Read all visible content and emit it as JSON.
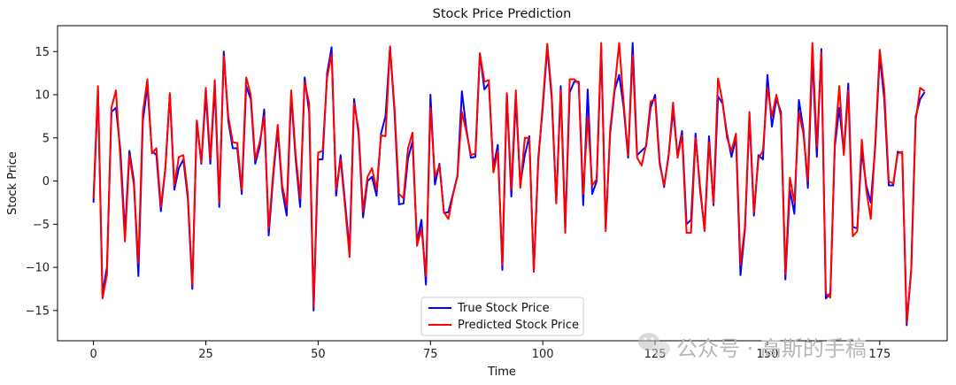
{
  "chart_data": {
    "type": "line",
    "title": "Stock Price Prediction",
    "xlabel": "Time",
    "ylabel": "Stock Price",
    "xlim": [
      -8,
      190
    ],
    "ylim": [
      -18.5,
      18
    ],
    "xticks": [
      0,
      25,
      50,
      75,
      100,
      125,
      150,
      175
    ],
    "yticks": [
      -15,
      -10,
      -5,
      0,
      5,
      10,
      15
    ],
    "legend_position": "lower-center",
    "series": [
      {
        "name": "True Stock Price",
        "color": "#0000ff",
        "values": [
          -2.5,
          10.5,
          -13,
          -10,
          8,
          8.5,
          3.5,
          -6,
          3.5,
          0,
          -11,
          7,
          11,
          3.5,
          3,
          -3.5,
          1.5,
          10,
          -1,
          1.5,
          2.5,
          -2,
          -12.5,
          7,
          2,
          10,
          2,
          11,
          -3,
          15,
          7,
          3.8,
          3.8,
          -1.5,
          11,
          9.5,
          2,
          4,
          8.3,
          -6.3,
          0.5,
          6,
          -1,
          -4,
          10,
          2.5,
          -3,
          12,
          8,
          -15,
          2.5,
          2.5,
          12.5,
          15.5,
          -1.7,
          3,
          -2.5,
          -8,
          9.5,
          5.5,
          -4.2,
          0,
          0.5,
          -1.7,
          5.5,
          7.5,
          15.5,
          8,
          -2.7,
          -2.6,
          2.6,
          4.6,
          -7,
          -4.5,
          -12,
          10,
          -0.4,
          2,
          -3.7,
          -3.6,
          -1.5,
          0.6,
          10.4,
          6,
          2.7,
          2.8,
          14.8,
          10.6,
          11.3,
          1.6,
          4.2,
          -10.3,
          10,
          -1.8,
          9.5,
          -0.4,
          3,
          5.2,
          -10.5,
          2.7,
          8.5,
          15.5,
          9.5,
          -2.5,
          11,
          -5.5,
          10.3,
          11.5,
          11.5,
          -2.8,
          10.6,
          -1.5,
          0,
          15.5,
          -5.5,
          5.5,
          10.5,
          12.3,
          8.5,
          2.7,
          16,
          3,
          3.5,
          4,
          8.5,
          10,
          2.3,
          -0.7,
          3,
          8.2,
          3,
          5.8,
          -5,
          -4.5,
          5.5,
          -1,
          -5.6,
          5.2,
          -2.8,
          9.8,
          9,
          5.5,
          2.8,
          5,
          -10.9,
          -5.6,
          7.5,
          -4,
          3,
          2.5,
          12.3,
          6.3,
          9.5,
          8,
          -11.4,
          -1,
          -3.8,
          9.4,
          6,
          -0.8,
          14.5,
          2.8,
          15.3,
          -13.6,
          -13,
          4,
          8.5,
          3.3,
          11.3,
          -5.3,
          -5.5,
          3.5,
          -0.5,
          -2.5,
          4,
          14.5,
          9.5,
          -0.5,
          -0.5,
          3.4,
          3.2,
          -16.7,
          -10.2,
          7.5,
          9.5,
          10.3
        ],
        "x_start": 0
      },
      {
        "name": "Predicted Stock Price",
        "color": "#ff0000",
        "values": [
          -2,
          11,
          -13.6,
          -10.8,
          8.5,
          10.5,
          2.5,
          -7,
          3,
          -0.5,
          -9.5,
          8,
          11.8,
          3.2,
          3.8,
          -3,
          1.5,
          10.2,
          -0.5,
          2.8,
          3,
          -1.5,
          -12,
          7,
          2.2,
          10.8,
          2.5,
          11.7,
          -2.5,
          14.5,
          7.5,
          4.5,
          4.4,
          -1,
          12,
          10,
          2.5,
          4.5,
          7.5,
          -5.5,
          1,
          6.5,
          -0.5,
          -3,
          10.5,
          3,
          -2,
          11.5,
          9,
          -14.5,
          3.3,
          3.5,
          12,
          14.7,
          -1,
          2.5,
          -3,
          -8.8,
          9,
          6,
          -3.5,
          0.5,
          1.5,
          -1,
          5.3,
          5.2,
          15.6,
          8.5,
          -1.5,
          -2,
          3.8,
          5.6,
          -7.5,
          -5.5,
          -11,
          8.5,
          0.5,
          1.8,
          -3.6,
          -4.4,
          -1.6,
          0.5,
          8,
          5.7,
          3,
          3.2,
          14.8,
          11.5,
          11.7,
          1,
          3.5,
          -9.7,
          10.2,
          -1,
          10.5,
          -0.8,
          5,
          5,
          -10.5,
          2.3,
          9,
          15.9,
          10,
          -2.6,
          10.5,
          -6,
          11.8,
          11.8,
          11.3,
          -1.5,
          7.5,
          -0.5,
          0.2,
          16,
          -5.8,
          6,
          10.8,
          16,
          9,
          3,
          14.6,
          2.7,
          1.8,
          4.2,
          9.2,
          9.5,
          2,
          -0.5,
          2.8,
          9.1,
          2.7,
          5.3,
          -6,
          -6,
          5,
          -0.5,
          -5.8,
          4.5,
          -2.6,
          11.9,
          9.2,
          5,
          3.5,
          5.5,
          -9.7,
          -5.3,
          8,
          -3.6,
          2.6,
          3.5,
          10.8,
          7.5,
          10,
          7.5,
          -10.8,
          0.4,
          -2.5,
          8,
          5.5,
          0,
          16,
          4,
          14.9,
          -13,
          -13.5,
          4.5,
          11,
          3,
          10.5,
          -6.4,
          -5.8,
          4.8,
          -1,
          -4.4,
          4.5,
          15.2,
          10.6,
          0,
          -0.3,
          3.2,
          3.4,
          -16.4,
          -10.5,
          7,
          10.8,
          10.4
        ],
        "x_start": 0
      }
    ]
  },
  "watermark": {
    "text": "公众号 · 高斯的手稿",
    "icon": "wechat-icon"
  }
}
